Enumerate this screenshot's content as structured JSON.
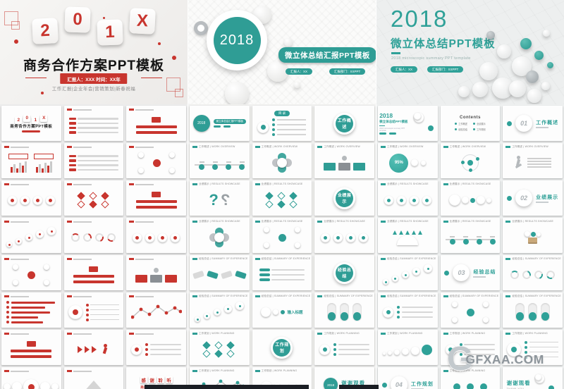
{
  "watermark": {
    "logo_letter": "G",
    "text": "GFXAA.COM",
    "color": "#8d959b"
  },
  "panels": [
    {
      "id": "red-business-template",
      "accent": "#c8352e",
      "hero": {
        "year_tiles": [
          "2",
          "0",
          "1",
          "X"
        ],
        "title": "商务合作方案PPT模板",
        "ribbon": "汇报人：XXX  时间：XX年",
        "subtitle": "工作汇报|企业年会|营销策划|新春祝福"
      },
      "section_headers": [],
      "thumbnails": [
        {
          "kind": "cover_red"
        },
        {
          "kind": "list",
          "hd": true
        },
        {
          "kind": "centerbars",
          "hd": true
        },
        {
          "kind": "dualbars",
          "hd": true
        },
        {
          "kind": "list",
          "hd": true
        },
        {
          "kind": "radial",
          "hd": true
        },
        {
          "kind": "circles",
          "hd": true
        },
        {
          "kind": "grid",
          "hd": true
        },
        {
          "kind": "centerbars",
          "hd": true
        },
        {
          "kind": "zigzag",
          "hd": true
        },
        {
          "kind": "donuts",
          "hd": true
        },
        {
          "kind": "circles",
          "hd": true
        },
        {
          "kind": "radial",
          "hd": true
        },
        {
          "kind": "centerbars",
          "hd": true
        },
        {
          "kind": "org",
          "hd": true
        },
        {
          "kind": "hbars",
          "hd": true
        },
        {
          "kind": "circlelist",
          "hd": true
        },
        {
          "kind": "line",
          "hd": true
        },
        {
          "kind": "centerbars",
          "hd": true
        },
        {
          "kind": "chevrons",
          "hd": true
        },
        {
          "kind": "branch",
          "hd": true
        },
        {
          "kind": "bigrow",
          "hd": true
        },
        {
          "kind": "pyramid",
          "hd": true
        },
        {
          "kind": "thank_red",
          "label": "感谢聆听",
          "sub": "商务合作方案PPT模板"
        }
      ]
    },
    {
      "id": "teal-2018-summary-template",
      "accent": "#2f9d95",
      "hero": {
        "year": "2018",
        "title": "微立体总结汇报PPT模板",
        "pill_left": "汇报人：XX",
        "pill_right": "汇报部门：XXPPT"
      },
      "section_headers": [
        "工作概述 | WORK OVERVIEW",
        "业绩展示 | RESULTS SHOWCASE",
        "经验总结 | SUMMARY OF EXPERIENCE",
        "工作规划 | WORK PLANNING"
      ],
      "thumbnails": [
        {
          "kind": "cover_mid"
        },
        {
          "kind": "toc",
          "label": "目 录"
        },
        {
          "kind": "bigcircle",
          "label": "工作概述"
        },
        {
          "kind": "timeline",
          "h": 0
        },
        {
          "kind": "flower",
          "h": 0
        },
        {
          "kind": "org",
          "h": 0
        },
        {
          "kind": "qmarks",
          "h": 1
        },
        {
          "kind": "grid",
          "h": 1
        },
        {
          "kind": "bigcircle",
          "label": "业绩展示"
        },
        {
          "kind": "flower",
          "h": 1
        },
        {
          "kind": "radial",
          "h": 1
        },
        {
          "kind": "circles",
          "h": 1
        },
        {
          "kind": "tags",
          "h": 2
        },
        {
          "kind": "arrows",
          "h": 2
        },
        {
          "kind": "bigcircle",
          "label": "经验总结"
        },
        {
          "kind": "zigzag",
          "h": 2
        },
        {
          "kind": "bubbles",
          "label": "输入标题",
          "h": 2
        },
        {
          "kind": "pills",
          "h": 2
        },
        {
          "kind": "grid",
          "h": 3
        },
        {
          "kind": "bigcircle",
          "label": "工作规划"
        },
        {
          "kind": "branch",
          "h": 3
        },
        {
          "kind": "line",
          "h": 3
        },
        {
          "kind": "cluster",
          "h": 3
        },
        {
          "kind": "thank_mid",
          "label": "谢谢观看",
          "sub": "THANK YOU",
          "year": "2018"
        }
      ]
    },
    {
      "id": "teal-2018-micro-template",
      "accent": "#2fa198",
      "hero": {
        "year": "2018",
        "title": "微立体总结PPT模板",
        "subtitle_en": "2018 microscopic summary PPT template",
        "pill_left": "汇报人：XX",
        "pill_right": "汇报部门：XXPPT"
      },
      "section_headers": [
        "工作概述 | WORK OVERVIEW",
        "业绩展示 | RESULTS SHOWCASE",
        "经验总结 | SUMMARY OF EXPERIENCE",
        "工作规划 | WORK PLANNING"
      ],
      "thumbnails": [
        {
          "kind": "cover_right"
        },
        {
          "kind": "contents",
          "label": "Contents",
          "items": [
            "工作概述",
            "业绩展示",
            "经验总结",
            "工作规划"
          ]
        },
        {
          "kind": "section",
          "num": "01",
          "label": "工作概述"
        },
        {
          "kind": "ball95",
          "label": "95%",
          "h": 0
        },
        {
          "kind": "orbit",
          "h": 0
        },
        {
          "kind": "runner",
          "h": 0
        },
        {
          "kind": "circles",
          "h": 1
        },
        {
          "kind": "cluster",
          "h": 1
        },
        {
          "kind": "section",
          "num": "02",
          "label": "业绩展示"
        },
        {
          "kind": "rays",
          "h": 1
        },
        {
          "kind": "timeline",
          "h": 1
        },
        {
          "kind": "boxballs",
          "h": 1
        },
        {
          "kind": "zigzag",
          "h": 2
        },
        {
          "kind": "section",
          "num": "03",
          "label": "经验总结"
        },
        {
          "kind": "donuts",
          "h": 2
        },
        {
          "kind": "branch",
          "h": 2
        },
        {
          "kind": "radial",
          "h": 2
        },
        {
          "kind": "pills",
          "h": 2
        },
        {
          "kind": "grow",
          "h": 3
        },
        {
          "kind": "branch",
          "h": 3
        },
        {
          "kind": "circlelist",
          "h": 3
        },
        {
          "kind": "section",
          "num": "04",
          "label": "工作规划"
        },
        {
          "kind": "nums",
          "h": 3
        },
        {
          "kind": "thank_right",
          "label": "谢谢观看",
          "sub": "THANK YOU"
        }
      ]
    }
  ]
}
